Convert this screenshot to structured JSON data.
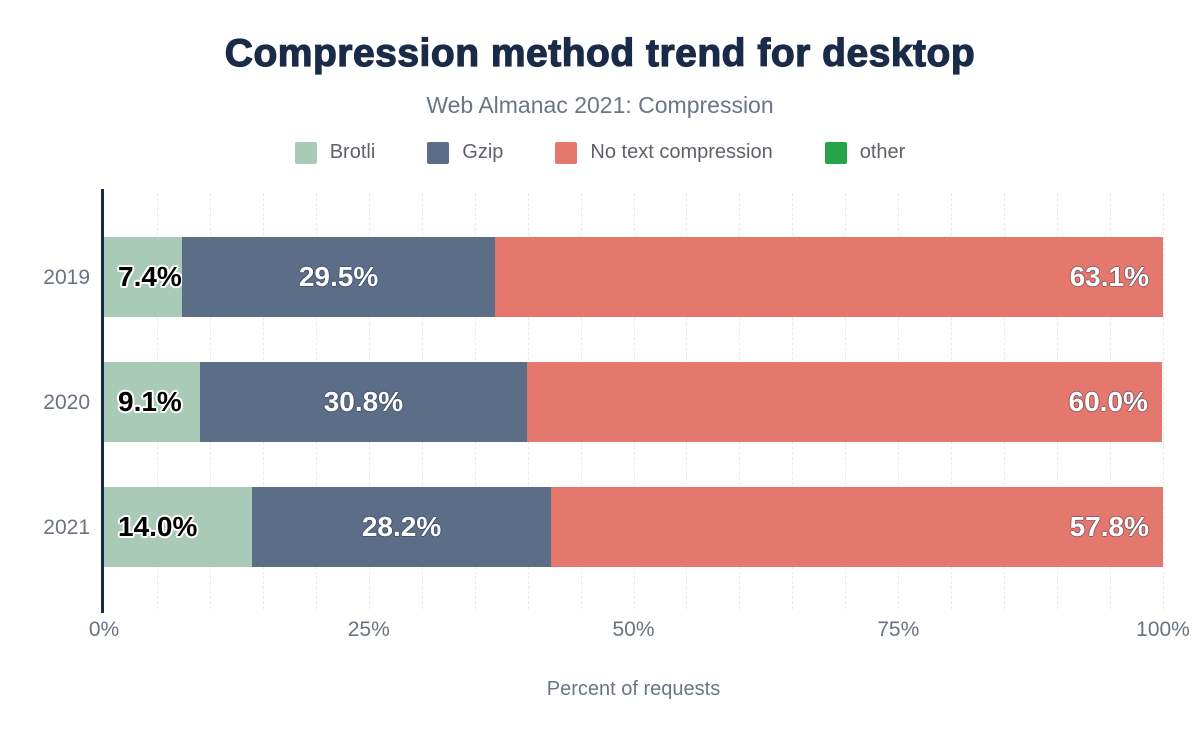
{
  "title": "Compression method trend for desktop",
  "subtitle": "Web Almanac 2021: Compression",
  "colors": {
    "title_navy": "#1a2b49",
    "axis_line": "#1a2b49",
    "gridline": "#e9e9e9",
    "tick_text": "#6b7280",
    "legend_text": "#5f6368"
  },
  "chart_data": {
    "type": "bar",
    "orientation": "horizontal-stacked",
    "title": "Compression method trend for desktop",
    "subtitle": "Web Almanac 2021: Compression",
    "categories": [
      "2019",
      "2020",
      "2021"
    ],
    "series": [
      {
        "name": "Brotli",
        "color": "#a8cab6",
        "values": [
          7.4,
          9.1,
          14.0
        ],
        "label_style": "dark",
        "label_align": "start"
      },
      {
        "name": "Gzip",
        "color": "#5c6e87",
        "values": [
          29.5,
          30.8,
          28.2
        ],
        "label_style": "light",
        "label_align": "center"
      },
      {
        "name": "No text compression",
        "color": "#e5786d",
        "values": [
          63.1,
          60.0,
          57.8
        ],
        "label_style": "light",
        "label_align": "end"
      },
      {
        "name": "other",
        "color": "#27a449",
        "values": [
          0,
          0,
          0
        ],
        "label_style": "light",
        "label_align": "center"
      }
    ],
    "xlabel": "Percent of requests",
    "xlim": [
      0,
      100
    ],
    "xticks": [
      {
        "value": 0,
        "label": "0%"
      },
      {
        "value": 25,
        "label": "25%"
      },
      {
        "value": 50,
        "label": "50%"
      },
      {
        "value": 75,
        "label": "75%"
      },
      {
        "value": 100,
        "label": "100%"
      }
    ],
    "grid": {
      "vertical": true,
      "interval": 5
    },
    "legend_position": "top",
    "value_label_format": "{value}%"
  }
}
